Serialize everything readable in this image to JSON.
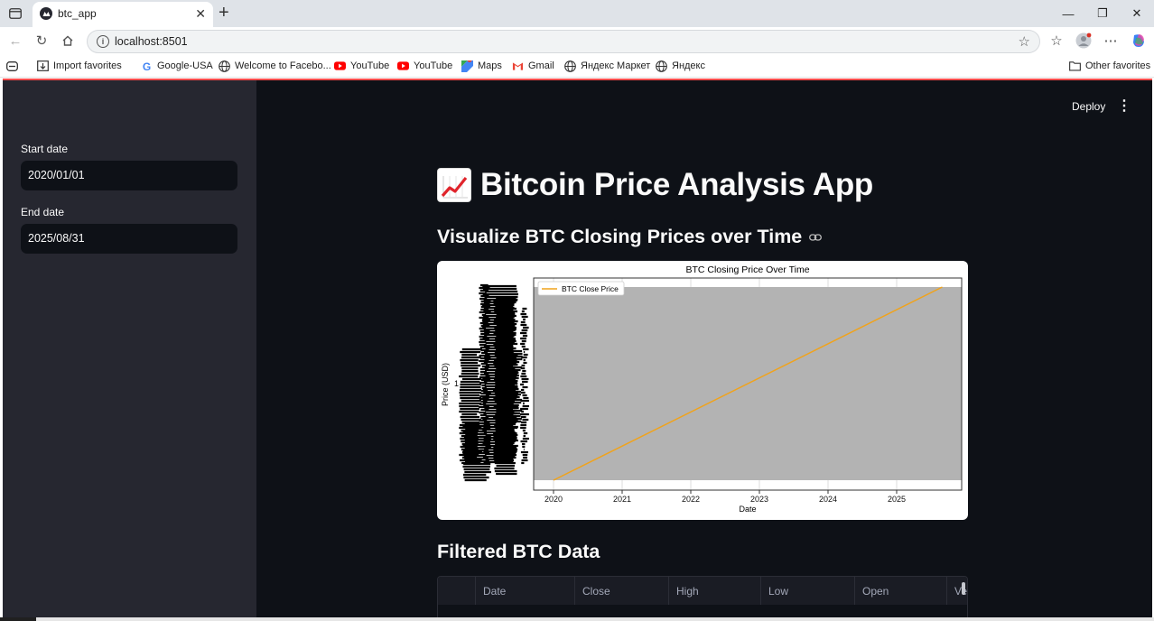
{
  "browser": {
    "tab_title": "btc_app",
    "url": "localhost:8501",
    "bookmarks": [
      {
        "label": "Import favorites",
        "icon": "import-icon"
      },
      {
        "label": "Google-USA",
        "icon": "google-icon"
      },
      {
        "label": "Welcome to Facebo...",
        "icon": "globe-icon"
      },
      {
        "label": "YouTube",
        "icon": "youtube-icon"
      },
      {
        "label": "YouTube",
        "icon": "youtube-icon"
      },
      {
        "label": "Maps",
        "icon": "maps-icon"
      },
      {
        "label": "Gmail",
        "icon": "gmail-icon"
      },
      {
        "label": "Яндекс Маркет",
        "icon": "globe-icon"
      },
      {
        "label": "Яндекс",
        "icon": "globe-icon"
      }
    ],
    "other_favorites": "Other favorites"
  },
  "sidebar": {
    "start_label": "Start date",
    "start_value": "2020/01/01",
    "end_label": "End date",
    "end_value": "2025/08/31"
  },
  "header": {
    "deploy_label": "Deploy"
  },
  "main": {
    "title": "Bitcoin Price Analysis App",
    "subtitle": "Visualize BTC Closing Prices over Time",
    "table_heading": "Filtered BTC Data",
    "table_columns": [
      "",
      "Date",
      "Close",
      "High",
      "Low",
      "Open",
      "Ve"
    ]
  },
  "colors": {
    "accent": "#ff4b4b",
    "line": "#f0a31c",
    "plot_bg": "#b3b3b3",
    "app_bg": "#0e1117",
    "sidebar_bg": "#262730"
  },
  "chart_data": {
    "type": "line",
    "title": "BTC Closing Price Over Time",
    "xlabel": "Date",
    "ylabel": "Price (USD)",
    "x_ticks": [
      "2020",
      "2021",
      "2022",
      "2023",
      "2024",
      "2025"
    ],
    "series": [
      {
        "name": "BTC Close Price",
        "x": [
          "2020-01-01",
          "2025-08-31"
        ],
        "y": [
          0,
          1
        ]
      }
    ],
    "y_tick_note": "y tick labels are illegibly overlapped (categorical string axis)",
    "legend": "top-left",
    "grid": true
  }
}
